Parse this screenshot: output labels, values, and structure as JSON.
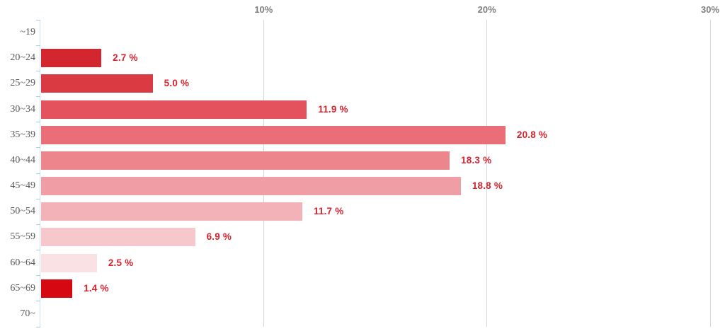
{
  "chart_data": {
    "type": "bar",
    "orientation": "horizontal",
    "title": "",
    "xlabel": "",
    "ylabel": "",
    "categories": [
      "~19",
      "20~24",
      "25~29",
      "30~34",
      "35~39",
      "40~44",
      "45~49",
      "50~54",
      "55~59",
      "60~64",
      "65~69",
      "70~"
    ],
    "values": [
      null,
      2.7,
      5.0,
      11.9,
      20.8,
      18.3,
      18.8,
      11.7,
      6.9,
      2.5,
      1.4,
      null
    ],
    "value_labels": [
      "",
      "2.7 %",
      "5.0 %",
      "11.9 %",
      "20.8 %",
      "18.3 %",
      "18.8 %",
      "11.7 %",
      "6.9 %",
      "2.5 %",
      "1.4 %",
      ""
    ],
    "bar_colors": [
      "",
      "#d4262f",
      "#da3a42",
      "#e4535d",
      "#ea6e77",
      "#ed858d",
      "#f09ea6",
      "#f3b2b8",
      "#f6c8cc",
      "#fae1e3",
      "#d60812",
      ""
    ],
    "x_ticks": [
      {
        "value": 10,
        "label": "10%"
      },
      {
        "value": 20,
        "label": "20%"
      },
      {
        "value": 30,
        "label": "30%"
      }
    ],
    "xlim": [
      0,
      30.7
    ],
    "grid": "vertical-gridlines",
    "legend": "none",
    "colors": {
      "value_label": "#d5232e",
      "x_tick_label": "#7f7f7f",
      "category_label": "#595959",
      "gridline": "#d6d6d6",
      "axis_line": "#cfe0ef",
      "axis_tick": "#a9cbe7",
      "background": "#ffffff"
    }
  }
}
